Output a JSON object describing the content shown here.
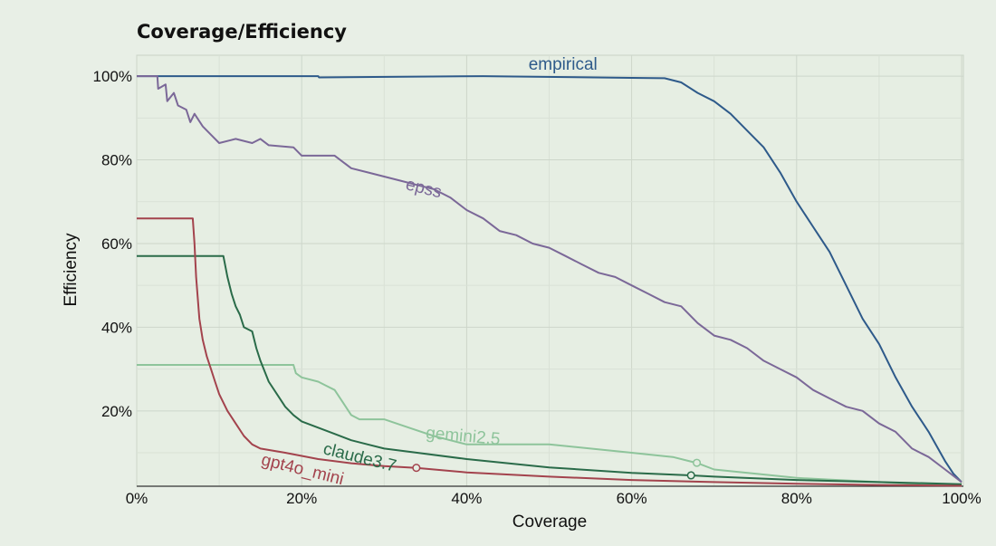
{
  "chart_data": {
    "type": "line",
    "title": "Coverage/Efficiency",
    "xlabel": "Coverage",
    "ylabel": "Efficiency",
    "xlim": [
      0,
      100
    ],
    "ylim": [
      2,
      105
    ],
    "xticks": [
      "0%",
      "20%",
      "40%",
      "60%",
      "80%",
      "100%"
    ],
    "xtick_values": [
      0,
      20,
      40,
      60,
      80,
      100
    ],
    "yticks": [
      "20%",
      "40%",
      "60%",
      "80%",
      "100%"
    ],
    "ytick_values": [
      20,
      40,
      60,
      80,
      100
    ],
    "grid": true,
    "legend": "inline labels on lines",
    "series": [
      {
        "name": "empirical",
        "color": "#2e5a8a",
        "points": [
          [
            0,
            100
          ],
          [
            22,
            100
          ],
          [
            22.1,
            99.7
          ],
          [
            42,
            100
          ],
          [
            60,
            99.6
          ],
          [
            64,
            99.5
          ],
          [
            66,
            98.5
          ],
          [
            68,
            96
          ],
          [
            70,
            94
          ],
          [
            72,
            91
          ],
          [
            74,
            87
          ],
          [
            76,
            83
          ],
          [
            78,
            77
          ],
          [
            80,
            70
          ],
          [
            82,
            64
          ],
          [
            84,
            58
          ],
          [
            86,
            50
          ],
          [
            88,
            42
          ],
          [
            90,
            36
          ],
          [
            92,
            28
          ],
          [
            94,
            21
          ],
          [
            96,
            15
          ],
          [
            98,
            8
          ],
          [
            99,
            5
          ],
          [
            100,
            3
          ]
        ],
        "label_at": [
          47.5,
          101.5
        ],
        "label_rotate": 0
      },
      {
        "name": "epss",
        "color": "#7b6898",
        "points": [
          [
            0,
            100
          ],
          [
            2.5,
            100
          ],
          [
            2.6,
            97
          ],
          [
            3.5,
            98
          ],
          [
            3.7,
            94
          ],
          [
            4.5,
            96
          ],
          [
            5,
            93
          ],
          [
            6,
            92
          ],
          [
            6.5,
            89
          ],
          [
            7,
            91
          ],
          [
            8,
            88
          ],
          [
            9,
            86
          ],
          [
            10,
            84
          ],
          [
            12,
            85
          ],
          [
            14,
            84
          ],
          [
            15,
            85
          ],
          [
            16,
            83.5
          ],
          [
            19,
            83
          ],
          [
            20,
            81
          ],
          [
            24,
            81
          ],
          [
            26,
            78
          ],
          [
            28,
            77
          ],
          [
            30,
            76
          ],
          [
            32,
            75
          ],
          [
            34,
            74
          ],
          [
            36,
            73
          ],
          [
            38,
            71
          ],
          [
            40,
            68
          ],
          [
            42,
            66
          ],
          [
            44,
            63
          ],
          [
            46,
            62
          ],
          [
            48,
            60
          ],
          [
            50,
            59
          ],
          [
            52,
            57
          ],
          [
            54,
            55
          ],
          [
            56,
            53
          ],
          [
            58,
            52
          ],
          [
            60,
            50
          ],
          [
            62,
            48
          ],
          [
            64,
            46
          ],
          [
            66,
            45
          ],
          [
            68,
            41
          ],
          [
            70,
            38
          ],
          [
            72,
            37
          ],
          [
            74,
            35
          ],
          [
            76,
            32
          ],
          [
            78,
            30
          ],
          [
            80,
            28
          ],
          [
            82,
            25
          ],
          [
            84,
            23
          ],
          [
            86,
            21
          ],
          [
            88,
            20
          ],
          [
            90,
            17
          ],
          [
            92,
            15
          ],
          [
            94,
            11
          ],
          [
            96,
            9
          ],
          [
            98,
            6
          ],
          [
            100,
            3
          ]
        ],
        "label_at": [
          32.5,
          73
        ],
        "label_rotate": 14
      },
      {
        "name": "gemini2.5",
        "color": "#8ec49b",
        "points": [
          [
            0,
            31
          ],
          [
            19,
            31
          ],
          [
            19.3,
            29
          ],
          [
            20,
            28
          ],
          [
            22,
            27
          ],
          [
            23,
            26
          ],
          [
            24,
            25
          ],
          [
            25,
            22
          ],
          [
            26,
            19
          ],
          [
            27,
            18
          ],
          [
            30,
            18
          ],
          [
            33,
            16
          ],
          [
            36,
            14
          ],
          [
            38,
            13
          ],
          [
            40,
            12
          ],
          [
            42,
            12
          ],
          [
            50,
            12
          ],
          [
            55,
            11
          ],
          [
            60,
            10
          ],
          [
            65,
            9
          ],
          [
            68,
            7.5
          ],
          [
            70,
            6
          ],
          [
            75,
            5
          ],
          [
            80,
            4
          ],
          [
            85,
            3.5
          ],
          [
            90,
            3
          ],
          [
            95,
            2.5
          ],
          [
            100,
            2.3
          ]
        ],
        "marker_at": [
          67.9,
          7.6
        ],
        "label_at": [
          35,
          13.5
        ],
        "label_rotate": 5
      },
      {
        "name": "claude3.7",
        "color": "#2a6b49",
        "points": [
          [
            0,
            57
          ],
          [
            10.5,
            57
          ],
          [
            11,
            52
          ],
          [
            11.5,
            48
          ],
          [
            12,
            45
          ],
          [
            12.5,
            43
          ],
          [
            13,
            40
          ],
          [
            14,
            39
          ],
          [
            14.5,
            35
          ],
          [
            15,
            32
          ],
          [
            16,
            27
          ],
          [
            17,
            24
          ],
          [
            18,
            21
          ],
          [
            19,
            19
          ],
          [
            20,
            17.5
          ],
          [
            22,
            16
          ],
          [
            24,
            14.5
          ],
          [
            26,
            13
          ],
          [
            28,
            12
          ],
          [
            30,
            11
          ],
          [
            34,
            10
          ],
          [
            40,
            8.5
          ],
          [
            50,
            6.5
          ],
          [
            60,
            5.2
          ],
          [
            67.2,
            4.6
          ],
          [
            70,
            4.3
          ],
          [
            80,
            3.5
          ],
          [
            90,
            3
          ],
          [
            100,
            2.5
          ]
        ],
        "marker_at": [
          67.2,
          4.6
        ],
        "label_at": [
          22.5,
          9.8
        ],
        "label_rotate": 14
      },
      {
        "name": "gpt4o_mini",
        "color": "#a3434d",
        "points": [
          [
            0,
            66
          ],
          [
            6.8,
            66
          ],
          [
            7,
            60
          ],
          [
            7.2,
            52
          ],
          [
            7.6,
            42
          ],
          [
            8,
            37
          ],
          [
            8.5,
            33
          ],
          [
            9,
            30
          ],
          [
            9.5,
            27
          ],
          [
            10,
            24
          ],
          [
            11,
            20
          ],
          [
            12,
            17
          ],
          [
            13,
            14
          ],
          [
            14,
            12
          ],
          [
            15,
            11
          ],
          [
            18,
            10
          ],
          [
            22,
            8.5
          ],
          [
            26,
            7.5
          ],
          [
            30,
            6.8
          ],
          [
            33.9,
            6.4
          ],
          [
            40,
            5.3
          ],
          [
            50,
            4.3
          ],
          [
            60,
            3.5
          ],
          [
            70,
            3
          ],
          [
            80,
            2.6
          ],
          [
            90,
            2.3
          ],
          [
            100,
            2.1
          ]
        ],
        "marker_at": [
          33.9,
          6.4
        ],
        "label_at": [
          15,
          7.2
        ],
        "label_rotate": 14
      }
    ]
  }
}
